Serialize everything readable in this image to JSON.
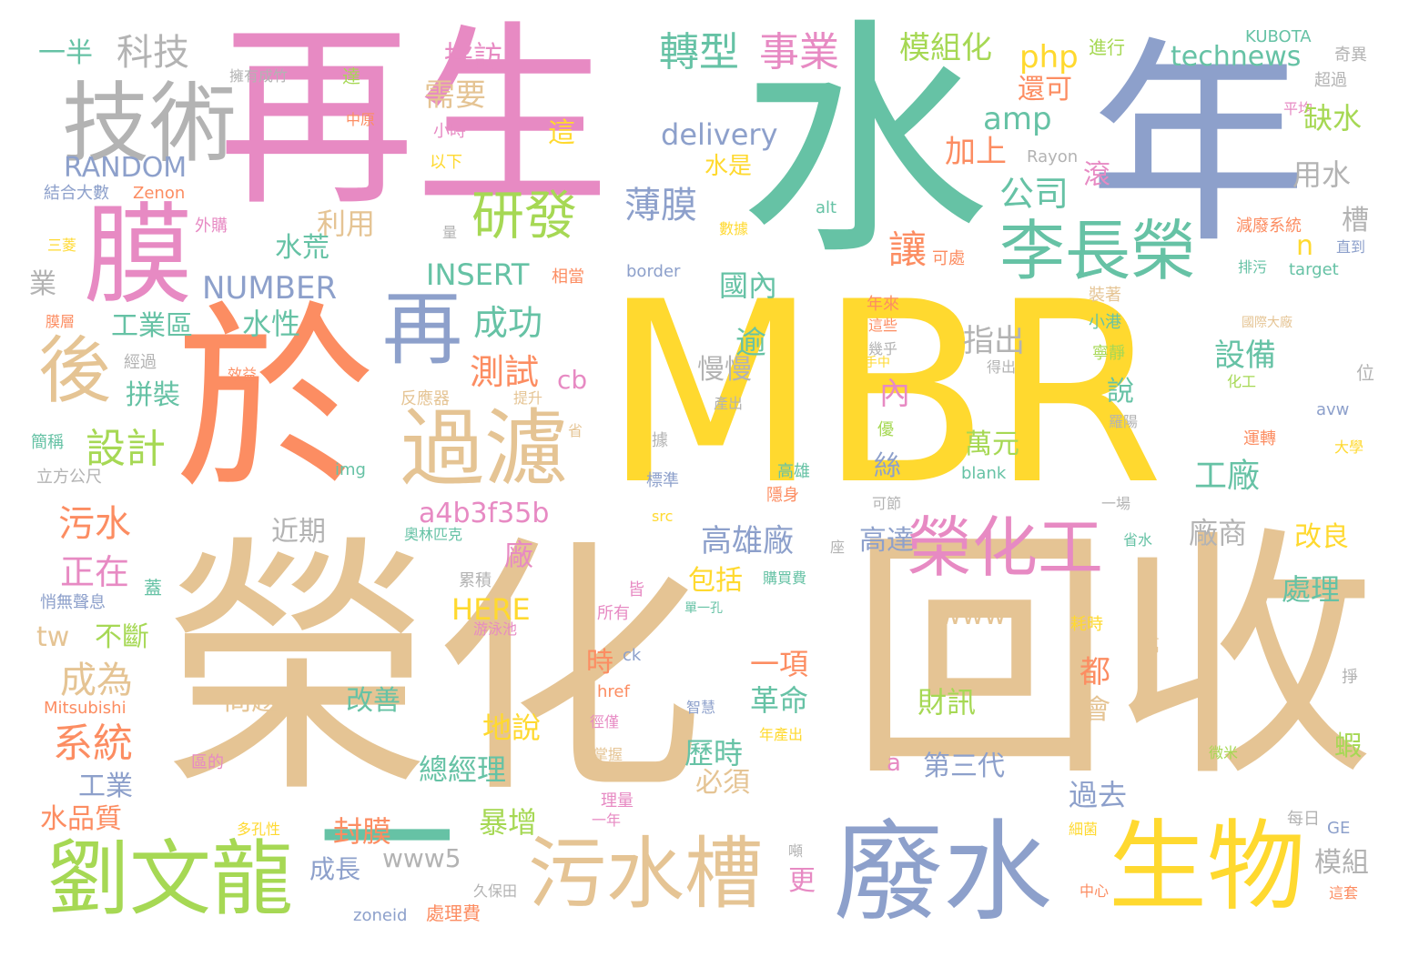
{
  "palette": {
    "yellow": "#ffd92f",
    "tan": "#e5c494",
    "pink": "#e78ac3",
    "green": "#66c2a5",
    "blue": "#8da0cb",
    "orange": "#fc8d62",
    "lime": "#a6d854",
    "gray": "#b3b3b3"
  },
  "words": [
    {
      "text": "MBR",
      "color": "yellow"
    },
    {
      "text": "榮化",
      "color": "tan"
    },
    {
      "text": "回收",
      "color": "tan"
    },
    {
      "text": "再生",
      "color": "pink"
    },
    {
      "text": "水",
      "color": "green"
    },
    {
      "text": "年",
      "color": "blue"
    },
    {
      "text": "於",
      "color": "orange"
    },
    {
      "text": "膜",
      "color": "pink"
    },
    {
      "text": "技術",
      "color": "gray"
    },
    {
      "text": "廢水",
      "color": "blue"
    },
    {
      "text": "生物",
      "color": "yellow"
    },
    {
      "text": "劉文龍",
      "color": "lime"
    },
    {
      "text": "污水槽",
      "color": "tan"
    },
    {
      "text": "一",
      "color": "green"
    },
    {
      "text": "過濾",
      "color": "tan"
    },
    {
      "text": "再",
      "color": "blue"
    },
    {
      "text": "後",
      "color": "tan"
    },
    {
      "text": "李長榮",
      "color": "green"
    },
    {
      "text": "研發",
      "color": "lime"
    },
    {
      "text": "榮化工",
      "color": "pink"
    },
    {
      "text": "轉型",
      "color": "green"
    },
    {
      "text": "事業",
      "color": "pink"
    },
    {
      "text": "科技",
      "color": "gray"
    },
    {
      "text": "一半",
      "color": "green"
    },
    {
      "text": "模組化",
      "color": "lime"
    },
    {
      "text": "採訪",
      "color": "pink"
    },
    {
      "text": "php",
      "color": "yellow"
    },
    {
      "text": "technews",
      "color": "green"
    },
    {
      "text": "進行",
      "color": "lime"
    },
    {
      "text": "KUBOTA",
      "color": "green"
    },
    {
      "text": "奇異",
      "color": "gray"
    },
    {
      "text": "擁有成竹",
      "color": "gray"
    },
    {
      "text": "達",
      "color": "lime"
    },
    {
      "text": "RANDOM",
      "color": "blue"
    },
    {
      "text": "amp",
      "color": "green"
    },
    {
      "text": "需要",
      "color": "tan"
    },
    {
      "text": "還可",
      "color": "orange"
    },
    {
      "text": "超過",
      "color": "gray"
    },
    {
      "text": "delivery",
      "color": "blue"
    },
    {
      "text": "小時",
      "color": "pink"
    },
    {
      "text": "中原",
      "color": "orange"
    },
    {
      "text": "這",
      "color": "yellow"
    },
    {
      "text": "平均",
      "color": "pink"
    },
    {
      "text": "缺水",
      "color": "lime"
    },
    {
      "text": "加上",
      "color": "orange"
    },
    {
      "text": "以下",
      "color": "yellow"
    },
    {
      "text": "Rayon",
      "color": "gray"
    },
    {
      "text": "水是",
      "color": "yellow"
    },
    {
      "text": "結合大數",
      "color": "blue"
    },
    {
      "text": "Zenon",
      "color": "orange"
    },
    {
      "text": "公司",
      "color": "green"
    },
    {
      "text": "滾",
      "color": "pink"
    },
    {
      "text": "用水",
      "color": "gray"
    },
    {
      "text": "薄膜",
      "color": "blue"
    },
    {
      "text": "利用",
      "color": "tan"
    },
    {
      "text": "外購",
      "color": "pink"
    },
    {
      "text": "數據",
      "color": "yellow"
    },
    {
      "text": "alt",
      "color": "green"
    },
    {
      "text": "減廢系統",
      "color": "orange"
    },
    {
      "text": "量",
      "color": "gray"
    },
    {
      "text": "槽",
      "color": "gray"
    },
    {
      "text": "三菱",
      "color": "yellow"
    },
    {
      "text": "水荒",
      "color": "green"
    },
    {
      "text": "讓",
      "color": "orange"
    },
    {
      "text": "可處",
      "color": "orange"
    },
    {
      "text": "n",
      "color": "yellow"
    },
    {
      "text": "直到",
      "color": "blue"
    },
    {
      "text": "INSERT",
      "color": "green"
    },
    {
      "text": "相當",
      "color": "orange"
    },
    {
      "text": "border",
      "color": "blue"
    },
    {
      "text": "排污",
      "color": "green"
    },
    {
      "text": "target",
      "color": "green"
    },
    {
      "text": "業",
      "color": "gray"
    },
    {
      "text": "NUMBER",
      "color": "blue"
    },
    {
      "text": "國內",
      "color": "green"
    },
    {
      "text": "年來",
      "color": "orange"
    },
    {
      "text": "裝著",
      "color": "tan"
    },
    {
      "text": "成功",
      "color": "green"
    },
    {
      "text": "膜層",
      "color": "orange"
    },
    {
      "text": "工業區",
      "color": "green"
    },
    {
      "text": "水性",
      "color": "green"
    },
    {
      "text": "這些",
      "color": "orange"
    },
    {
      "text": "小港",
      "color": "green"
    },
    {
      "text": "國際大廠",
      "color": "tan"
    },
    {
      "text": "指出",
      "color": "gray"
    },
    {
      "text": "幾乎",
      "color": "gray"
    },
    {
      "text": "逾",
      "color": "green"
    },
    {
      "text": "經過",
      "color": "gray"
    },
    {
      "text": "效益",
      "color": "orange"
    },
    {
      "text": "測試",
      "color": "orange"
    },
    {
      "text": "手中",
      "color": "yellow"
    },
    {
      "text": "寧靜",
      "color": "lime"
    },
    {
      "text": "慢慢",
      "color": "gray"
    },
    {
      "text": "設備",
      "color": "green"
    },
    {
      "text": "得出",
      "color": "gray"
    },
    {
      "text": "位",
      "color": "gray"
    },
    {
      "text": "化工",
      "color": "lime"
    },
    {
      "text": "cb",
      "color": "pink"
    },
    {
      "text": "拼裝",
      "color": "green"
    },
    {
      "text": "反應器",
      "color": "tan"
    },
    {
      "text": "提升",
      "color": "tan"
    },
    {
      "text": "內",
      "color": "pink"
    },
    {
      "text": "說",
      "color": "green"
    },
    {
      "text": "產出",
      "color": "gray"
    },
    {
      "text": "省",
      "color": "tan"
    },
    {
      "text": "avw",
      "color": "blue"
    },
    {
      "text": "簡稱",
      "color": "green"
    },
    {
      "text": "設計",
      "color": "lime"
    },
    {
      "text": "萬元",
      "color": "lime"
    },
    {
      "text": "優",
      "color": "lime"
    },
    {
      "text": "羅陽",
      "color": "gray"
    },
    {
      "text": "運轉",
      "color": "orange"
    },
    {
      "text": "據",
      "color": "gray"
    },
    {
      "text": "大學",
      "color": "yellow"
    },
    {
      "text": "工廠",
      "color": "green"
    },
    {
      "text": "立方公尺",
      "color": "gray"
    },
    {
      "text": "img",
      "color": "green"
    },
    {
      "text": "絲",
      "color": "blue"
    },
    {
      "text": "標準",
      "color": "blue"
    },
    {
      "text": "高雄",
      "color": "green"
    },
    {
      "text": "blank",
      "color": "green"
    },
    {
      "text": "隱身",
      "color": "orange"
    },
    {
      "text": "a4b3f35b",
      "color": "pink"
    },
    {
      "text": "可節",
      "color": "gray"
    },
    {
      "text": "一場",
      "color": "gray"
    },
    {
      "text": "污水",
      "color": "orange"
    },
    {
      "text": "近期",
      "color": "gray"
    },
    {
      "text": "src",
      "color": "yellow"
    },
    {
      "text": "廠",
      "color": "pink"
    },
    {
      "text": "高雄廠",
      "color": "blue"
    },
    {
      "text": "廠商",
      "color": "gray"
    },
    {
      "text": "高達",
      "color": "blue"
    },
    {
      "text": "奧林匹克",
      "color": "green"
    },
    {
      "text": "省水",
      "color": "green"
    },
    {
      "text": "座",
      "color": "gray"
    },
    {
      "text": "改良",
      "color": "yellow"
    },
    {
      "text": "正在",
      "color": "pink"
    },
    {
      "text": "包括",
      "color": "yellow"
    },
    {
      "text": "處理",
      "color": "green"
    },
    {
      "text": "蓋",
      "color": "green"
    },
    {
      "text": "購買費",
      "color": "green"
    },
    {
      "text": "累積",
      "color": "gray"
    },
    {
      "text": "悄無聲息",
      "color": "blue"
    },
    {
      "text": "皆",
      "color": "pink"
    },
    {
      "text": "單一孔",
      "color": "green"
    },
    {
      "text": "HERE",
      "color": "yellow"
    },
    {
      "text": "www",
      "color": "tan"
    },
    {
      "text": "所有",
      "color": "pink"
    },
    {
      "text": "tw",
      "color": "tan"
    },
    {
      "text": "不斷",
      "color": "lime"
    },
    {
      "text": "游泳池",
      "color": "pink"
    },
    {
      "text": "耗時",
      "color": "yellow"
    },
    {
      "text": "萬",
      "color": "tan"
    },
    {
      "text": "成為",
      "color": "tan"
    },
    {
      "text": "時",
      "color": "orange"
    },
    {
      "text": "ck",
      "color": "blue"
    },
    {
      "text": "一項",
      "color": "orange"
    },
    {
      "text": "都",
      "color": "orange"
    },
    {
      "text": "掙",
      "color": "gray"
    },
    {
      "text": "Mitsubishi",
      "color": "orange"
    },
    {
      "text": "問題",
      "color": "tan"
    },
    {
      "text": "改善",
      "color": "green"
    },
    {
      "text": "革命",
      "color": "green"
    },
    {
      "text": "財訊",
      "color": "lime"
    },
    {
      "text": "href",
      "color": "orange"
    },
    {
      "text": "智慧",
      "color": "blue"
    },
    {
      "text": "會",
      "color": "tan"
    },
    {
      "text": "徑僅",
      "color": "pink"
    },
    {
      "text": "地說",
      "color": "yellow"
    },
    {
      "text": "系統",
      "color": "orange"
    },
    {
      "text": "歷時",
      "color": "green"
    },
    {
      "text": "年產出",
      "color": "yellow"
    },
    {
      "text": "蝦",
      "color": "lime"
    },
    {
      "text": "區的",
      "color": "pink"
    },
    {
      "text": "總經理",
      "color": "green"
    },
    {
      "text": "掌握",
      "color": "tan"
    },
    {
      "text": "a",
      "color": "pink"
    },
    {
      "text": "第三代",
      "color": "blue"
    },
    {
      "text": "微米",
      "color": "lime"
    },
    {
      "text": "工業",
      "color": "blue"
    },
    {
      "text": "必須",
      "color": "tan"
    },
    {
      "text": "過去",
      "color": "blue"
    },
    {
      "text": "水品質",
      "color": "orange"
    },
    {
      "text": "理量",
      "color": "pink"
    },
    {
      "text": "一年",
      "color": "pink"
    },
    {
      "text": "每日",
      "color": "gray"
    },
    {
      "text": "GE",
      "color": "blue"
    },
    {
      "text": "暴增",
      "color": "lime"
    },
    {
      "text": "多孔性",
      "color": "yellow"
    },
    {
      "text": "細菌",
      "color": "yellow"
    },
    {
      "text": "封膜",
      "color": "orange"
    },
    {
      "text": "噸",
      "color": "gray"
    },
    {
      "text": "模組",
      "color": "gray"
    },
    {
      "text": "更",
      "color": "pink"
    },
    {
      "text": "成長",
      "color": "blue"
    },
    {
      "text": "www5",
      "color": "gray"
    },
    {
      "text": "中心",
      "color": "orange"
    },
    {
      "text": "這套",
      "color": "orange"
    },
    {
      "text": "久保田",
      "color": "gray"
    },
    {
      "text": "zoneid",
      "color": "blue"
    },
    {
      "text": "處理費",
      "color": "orange"
    }
  ]
}
